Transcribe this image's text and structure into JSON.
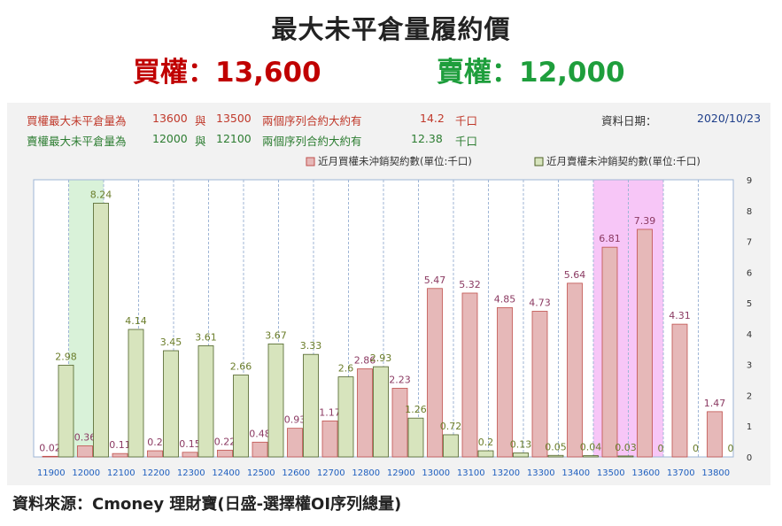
{
  "title": "最大未平倉量履約價",
  "call_headline": "買權：13,600",
  "put_headline": "賣權：12,000",
  "info": {
    "call_label": "買權最大未平倉量為",
    "call_strike1": "13600",
    "join": "與",
    "call_strike2": "13500",
    "series_text": "兩個序列合約大約有",
    "call_value": "14.2",
    "unit": "千口",
    "put_label": "賣權最大未平倉量為",
    "put_strike1": "12000",
    "put_strike2": "12100",
    "put_value": "12.38",
    "date_label": "資料日期：",
    "date_value": "2020/10/23"
  },
  "footer": "資料來源：Cmoney 理財寶(日盛-選擇權OI序列總量)",
  "colors": {
    "call_bar": "#e6b8b8",
    "call_border": "#c0504d",
    "put_bar": "#d7e4bd",
    "put_border": "#4f6228",
    "highlight_put": "#d9f2d9",
    "highlight_call": "#f7c6f7",
    "call_label": "#8b3a62",
    "put_label": "#6b7d2a",
    "tick_blue": "#1f5fbf"
  },
  "chart_data": {
    "type": "bar",
    "categories": [
      "11900",
      "12000",
      "12100",
      "12200",
      "12300",
      "12400",
      "12500",
      "12600",
      "12700",
      "12800",
      "12900",
      "13000",
      "13100",
      "13200",
      "13300",
      "13400",
      "13500",
      "13600",
      "13700",
      "13800"
    ],
    "series": [
      {
        "name": "近月買權未沖銷契約數(單位:千口)",
        "values": [
          0.02,
          0.36,
          0.11,
          0.2,
          0.15,
          0.22,
          0.48,
          0.93,
          1.17,
          2.86,
          2.23,
          5.47,
          5.32,
          4.85,
          4.73,
          5.64,
          6.81,
          7.39,
          4.31,
          1.47
        ]
      },
      {
        "name": "近月賣權未沖銷契約數(單位:千口)",
        "values": [
          2.98,
          8.24,
          4.14,
          3.45,
          3.61,
          2.66,
          3.67,
          3.33,
          2.6,
          2.93,
          1.26,
          0.72,
          0.2,
          0.13,
          0.05,
          0.04,
          0.03,
          0,
          0,
          0
        ]
      }
    ],
    "ylim": [
      0,
      9
    ],
    "yticks": [
      0,
      1,
      2,
      3,
      4,
      5,
      6,
      7,
      8,
      9
    ],
    "highlights": [
      {
        "categories": [
          "12000"
        ],
        "color": "highlight_put"
      },
      {
        "categories": [
          "13500",
          "13600"
        ],
        "color": "highlight_call"
      }
    ],
    "legend_position": "top-right"
  }
}
